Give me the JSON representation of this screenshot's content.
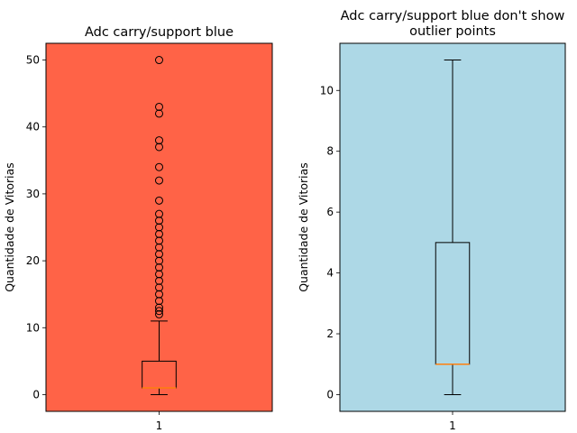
{
  "chart_data": [
    {
      "type": "boxplot",
      "title": "Adc carry/support blue",
      "ylabel": "Quantidade de Vitorias",
      "xlabel": "",
      "categories": [
        "1"
      ],
      "ylim": [
        -2.5,
        52.5
      ],
      "yticks": [
        0,
        10,
        20,
        30,
        40,
        50
      ],
      "background_color": "#FF6347",
      "median_color": "#FF7F0E",
      "show_outliers": true,
      "box": {
        "min": 0,
        "q1": 1,
        "median": 1,
        "q3": 5,
        "max": 11
      },
      "outliers": [
        12,
        12.5,
        13,
        14,
        15,
        16,
        17,
        18,
        19,
        20,
        21,
        22,
        23,
        24,
        25,
        26,
        27,
        29,
        32,
        34,
        37,
        38,
        42,
        43,
        50
      ]
    },
    {
      "type": "boxplot",
      "title": "Adc carry/support blue don't show\noutlier points",
      "ylabel": "Quantidade de Vitorias",
      "xlabel": "",
      "categories": [
        "1"
      ],
      "ylim": [
        -0.55,
        11.55
      ],
      "yticks": [
        0,
        2,
        4,
        6,
        8,
        10
      ],
      "background_color": "#ADD8E6",
      "median_color": "#FF7F0E",
      "show_outliers": false,
      "box": {
        "min": 0,
        "q1": 1,
        "median": 1,
        "q3": 5,
        "max": 11
      },
      "outliers": []
    }
  ]
}
